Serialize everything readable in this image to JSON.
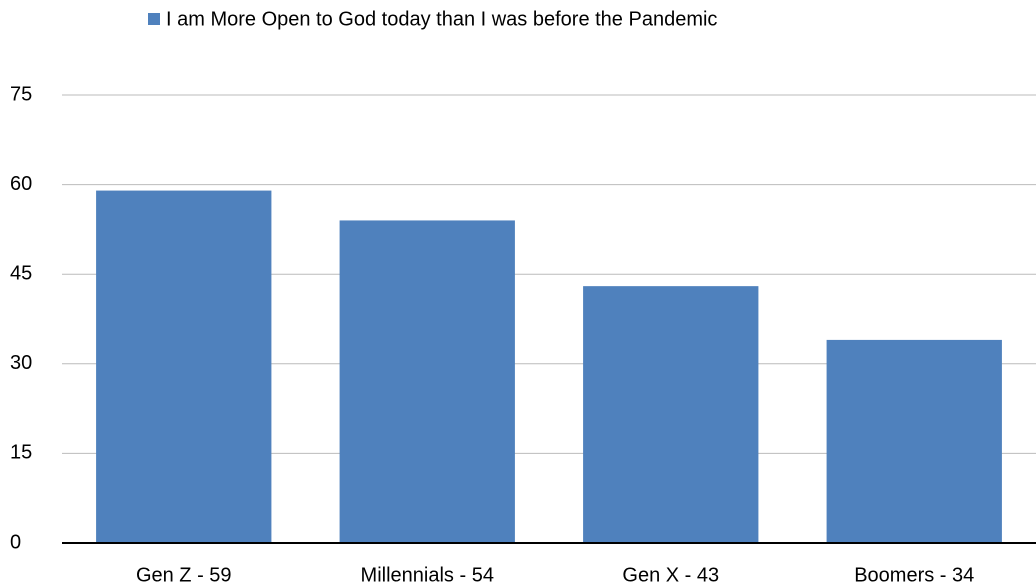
{
  "chart_data": {
    "type": "bar",
    "categories": [
      "Gen Z - 59",
      "Millennials - 54",
      "Gen X - 43",
      "Boomers - 34"
    ],
    "series": [
      {
        "name": "I am More Open to God today than I was before the Pandemic",
        "color": "#4f81bd",
        "values": [
          59,
          54,
          43,
          34
        ]
      }
    ],
    "ylim": [
      0,
      75
    ],
    "yticks": [
      0,
      15,
      30,
      45,
      60,
      75
    ],
    "grid": true,
    "legend": "top"
  }
}
